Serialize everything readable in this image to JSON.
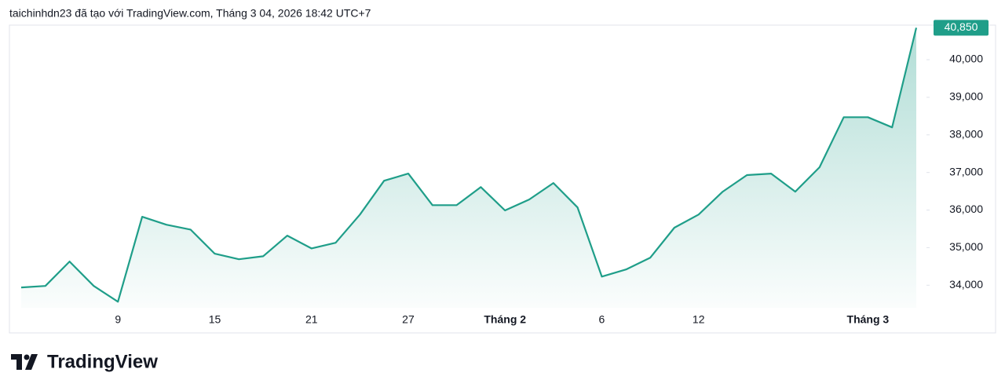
{
  "chart_data": {
    "type": "line",
    "title": "taichinhdn23 đã tạo với TradingView.com, Tháng 3 04, 2026 18:42 UTC+7",
    "categories": [
      null,
      null,
      null,
      null,
      "9",
      null,
      null,
      null,
      "15",
      null,
      null,
      null,
      "21",
      null,
      null,
      null,
      "27",
      null,
      null,
      null,
      "Tháng 2",
      null,
      null,
      null,
      "6",
      null,
      null,
      null,
      "12",
      null,
      null,
      null,
      null,
      null,
      null,
      "Tháng 3",
      null,
      null
    ],
    "values": [
      33940,
      33980,
      34630,
      33980,
      33560,
      35820,
      35610,
      35480,
      34840,
      34690,
      34770,
      35320,
      34980,
      35130,
      35880,
      36780,
      36970,
      36130,
      36130,
      36610,
      35990,
      36280,
      36720,
      36070,
      34230,
      34420,
      34730,
      35530,
      35880,
      36490,
      36930,
      36970,
      36490,
      37140,
      38470,
      38470,
      38200,
      40850
    ],
    "last_price_label": "40,850",
    "color": "#1f9e89",
    "ylim": [
      33400,
      40920
    ],
    "yticks": [
      {
        "value": 34000,
        "label": "34,000"
      },
      {
        "value": 35000,
        "label": "35,000"
      },
      {
        "value": 36000,
        "label": "36,000"
      },
      {
        "value": 37000,
        "label": "37,000"
      },
      {
        "value": 38000,
        "label": "38,000"
      },
      {
        "value": 39000,
        "label": "39,000"
      },
      {
        "value": 40000,
        "label": "40,000"
      }
    ],
    "grid": false
  },
  "footer": {
    "brand": "TradingView"
  }
}
